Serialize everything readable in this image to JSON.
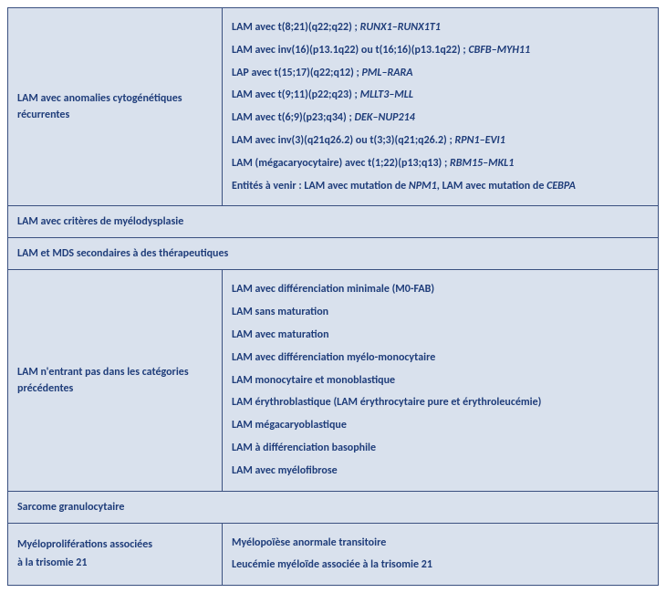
{
  "colors": {
    "background": "#d9e1ed",
    "border": "#3a5080",
    "text": "#1f3d7a"
  },
  "rows": [
    {
      "label": "LAM  avec anomalies cytogénétiques récurrentes",
      "items": [
        {
          "pre": "LAM avec t(8;21)(q22;q22) ; ",
          "gene": "RUNX1–RUNX1T1"
        },
        {
          "pre": "LAM avec inv(16)(p13.1q22) ou t(16;16)(p13.1q22) ; ",
          "gene": "CBFB–MYH11"
        },
        {
          "pre": "LAP avec t(15;17)(q22;q12) ; ",
          "gene": "PML–RARA"
        },
        {
          "pre": "LAM avec t(9;11)(p22;q23) ; ",
          "gene": "MLLT3–MLL"
        },
        {
          "pre": "LAM avec t(6;9)(p23;q34) ; ",
          "gene": "DEK–NUP214"
        },
        {
          "pre": "LAM avec inv(3)(q21q26.2) ou t(3;3)(q21;q26.2) ; ",
          "gene": "RPN1–EVI1"
        },
        {
          "pre": "LAM (mégacaryocytaire) avec t(1;22)(p13;q13) ; ",
          "gene": "RBM15–MKL1"
        },
        {
          "pre": "Entités à venir : LAM avec mutation de ",
          "gene": "NPM1",
          "post": ", LAM avec mutation de ",
          "gene2": "CEBPA"
        }
      ]
    }
  ],
  "full1": "LAM avec critères de myélodysplasie",
  "full2": "LAM et MDS secondaires à des thérapeutiques",
  "row3label": "LAM n'entrant pas dans les catégories précédentes",
  "row3items": [
    "LAM avec différenciation minimale (M0-FAB)",
    "LAM sans maturation",
    "LAM avec maturation",
    "LAM avec différenciation myélo-monocytaire",
    "LAM monocytaire et monoblastique",
    "LAM érythroblastique (LAM érythrocytaire pure et érythroleucémie)",
    "LAM mégacaryoblastique",
    "LAM à différenciation  basophile",
    "LAM avec myélofibrose"
  ],
  "full3": "Sarcome granulocytaire",
  "row4label_l1": "Myéloproliférations associées",
  "row4label_l2": " à la trisomie 21",
  "row4items": [
    "Myélopoïèse anormale transitoire",
    "Leucémie myéloïde associée à la trisomie 21"
  ]
}
